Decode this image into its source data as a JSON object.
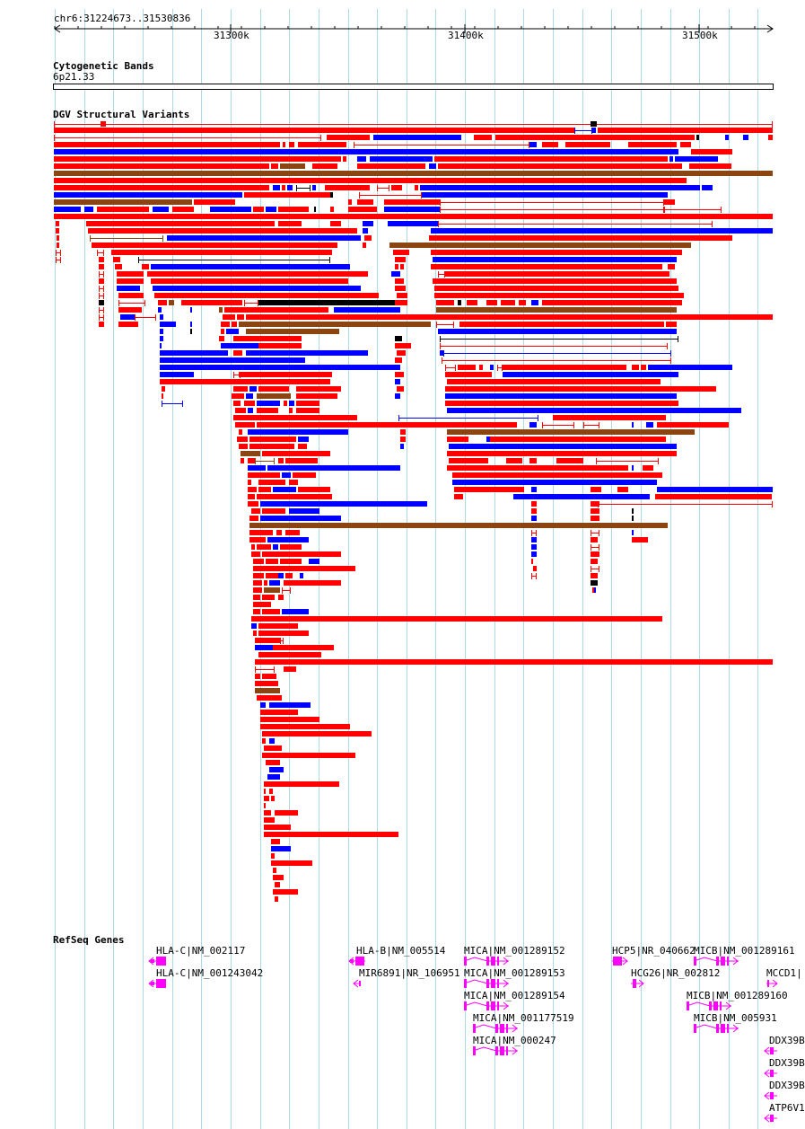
{
  "region": "chr6:31224673..31530836",
  "ruler": {
    "ticks": [
      "31300k",
      "31400k",
      "31500k"
    ]
  },
  "tracks": {
    "cytoband": {
      "title": "Cytogenetic Bands",
      "band": "6p21.33"
    },
    "dgv": {
      "title": "DGV Structural Variants"
    },
    "refseq": {
      "title": "RefSeq Genes"
    }
  },
  "genes": [
    {
      "label": "HLA-C|NM_002117",
      "strand": "-"
    },
    {
      "label": "HLA-C|NM_001243042",
      "strand": "-"
    },
    {
      "label": "HLA-B|NM_005514",
      "strand": "-"
    },
    {
      "label": "MIR6891|NR_106951",
      "strand": "-"
    },
    {
      "label": "MICA|NM_001289152",
      "strand": "+"
    },
    {
      "label": "MICA|NM_001289153",
      "strand": "+"
    },
    {
      "label": "MICA|NM_001289154",
      "strand": "+"
    },
    {
      "label": "MICA|NM_001177519",
      "strand": "+"
    },
    {
      "label": "MICA|NM_000247",
      "strand": "+"
    },
    {
      "label": "HCP5|NR_040662",
      "strand": "+"
    },
    {
      "label": "HCG26|NR_002812",
      "strand": "+"
    },
    {
      "label": "MICB|NM_001289161",
      "strand": "+"
    },
    {
      "label": "MICB|NM_001289160",
      "strand": "+"
    },
    {
      "label": "MICB|NM_005931",
      "strand": "+"
    },
    {
      "label": "MCCD1|",
      "strand": "+"
    },
    {
      "label": "DDX39B",
      "strand": "-"
    },
    {
      "label": "DDX39B",
      "strand": "-"
    },
    {
      "label": "DDX39B",
      "strand": "-"
    },
    {
      "label": "ATP6V1",
      "strand": "-"
    }
  ],
  "colors": {
    "gain": "#ff0000",
    "loss": "#0000ff",
    "gain_loss": "#8b4513",
    "inversion": "#000000",
    "gene": "#ff00ff",
    "grid": "#add8e6"
  }
}
